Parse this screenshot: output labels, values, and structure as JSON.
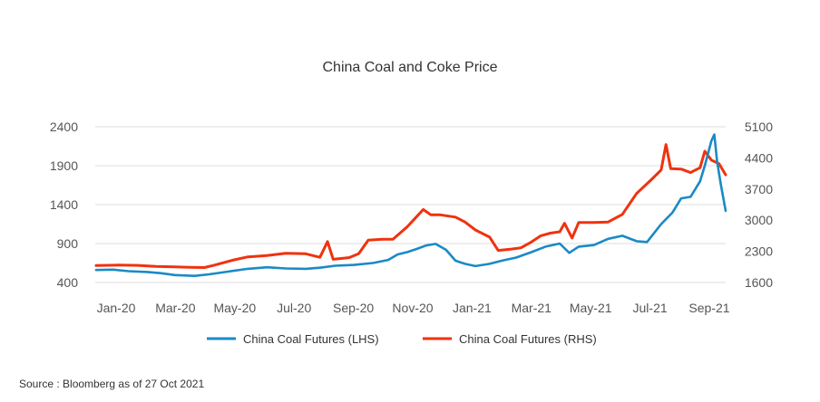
{
  "chart_data": {
    "type": "line",
    "title": "China Coal and Coke Price",
    "x_tick_labels": [
      "Jan-20",
      "Mar-20",
      "May-20",
      "Jul-20",
      "Sep-20",
      "Nov-20",
      "Jan-21",
      "Mar-21",
      "May-21",
      "Jul-21",
      "Sep-21"
    ],
    "x_range": [
      "2020-01-01",
      "2021-10-27"
    ],
    "left_axis": {
      "ylim": [
        400,
        2400
      ],
      "ticks": [
        400,
        900,
        1400,
        1900,
        2400
      ]
    },
    "right_axis": {
      "ylim": [
        1600,
        5100
      ],
      "ticks": [
        1600,
        2300,
        3000,
        3700,
        4400,
        5100
      ]
    },
    "grid": "horizontal",
    "legend": "bottom",
    "series": [
      {
        "name": "China Coal Futures (LHS)",
        "axis": "left",
        "color": "#1a8ac6",
        "points": [
          [
            "2020-01-02",
            560
          ],
          [
            "2020-01-20",
            565
          ],
          [
            "2020-02-05",
            545
          ],
          [
            "2020-02-25",
            535
          ],
          [
            "2020-03-10",
            520
          ],
          [
            "2020-03-25",
            495
          ],
          [
            "2020-04-15",
            485
          ],
          [
            "2020-04-30",
            505
          ],
          [
            "2020-05-20",
            540
          ],
          [
            "2020-06-10",
            575
          ],
          [
            "2020-06-30",
            595
          ],
          [
            "2020-07-20",
            580
          ],
          [
            "2020-08-10",
            575
          ],
          [
            "2020-08-25",
            590
          ],
          [
            "2020-09-10",
            615
          ],
          [
            "2020-09-30",
            625
          ],
          [
            "2020-10-20",
            650
          ],
          [
            "2020-11-05",
            690
          ],
          [
            "2020-11-15",
            760
          ],
          [
            "2020-11-25",
            790
          ],
          [
            "2020-12-05",
            830
          ],
          [
            "2020-12-15",
            875
          ],
          [
            "2020-12-25",
            895
          ],
          [
            "2021-01-05",
            820
          ],
          [
            "2021-01-15",
            680
          ],
          [
            "2021-01-25",
            640
          ],
          [
            "2021-02-05",
            610
          ],
          [
            "2021-02-20",
            640
          ],
          [
            "2021-03-05",
            680
          ],
          [
            "2021-03-20",
            720
          ],
          [
            "2021-04-05",
            790
          ],
          [
            "2021-04-20",
            860
          ],
          [
            "2021-05-05",
            900
          ],
          [
            "2021-05-15",
            780
          ],
          [
            "2021-05-25",
            860
          ],
          [
            "2021-06-10",
            880
          ],
          [
            "2021-06-25",
            960
          ],
          [
            "2021-07-10",
            1000
          ],
          [
            "2021-07-25",
            930
          ],
          [
            "2021-08-05",
            920
          ],
          [
            "2021-08-20",
            1150
          ],
          [
            "2021-09-01",
            1300
          ],
          [
            "2021-09-10",
            1480
          ],
          [
            "2021-09-20",
            1500
          ],
          [
            "2021-09-30",
            1700
          ],
          [
            "2021-10-05",
            1900
          ],
          [
            "2021-10-12",
            2220
          ],
          [
            "2021-10-15",
            2300
          ],
          [
            "2021-10-18",
            1950
          ],
          [
            "2021-10-22",
            1650
          ],
          [
            "2021-10-27",
            1320
          ]
        ]
      },
      {
        "name": "China Coal Futures (RHS)",
        "axis": "right",
        "color": "#f0320f",
        "points": [
          [
            "2020-01-02",
            1980
          ],
          [
            "2020-01-25",
            1990
          ],
          [
            "2020-02-15",
            1985
          ],
          [
            "2020-03-05",
            1960
          ],
          [
            "2020-03-25",
            1950
          ],
          [
            "2020-04-10",
            1940
          ],
          [
            "2020-04-25",
            1935
          ],
          [
            "2020-05-05",
            1985
          ],
          [
            "2020-05-25",
            2100
          ],
          [
            "2020-06-10",
            2175
          ],
          [
            "2020-06-30",
            2205
          ],
          [
            "2020-07-20",
            2255
          ],
          [
            "2020-08-10",
            2245
          ],
          [
            "2020-08-25",
            2165
          ],
          [
            "2020-09-02",
            2520
          ],
          [
            "2020-09-08",
            2120
          ],
          [
            "2020-09-25",
            2160
          ],
          [
            "2020-10-05",
            2250
          ],
          [
            "2020-10-15",
            2550
          ],
          [
            "2020-10-30",
            2570
          ],
          [
            "2020-11-10",
            2570
          ],
          [
            "2020-11-25",
            2850
          ],
          [
            "2020-12-05",
            3080
          ],
          [
            "2020-12-12",
            3240
          ],
          [
            "2020-12-20",
            3120
          ],
          [
            "2020-12-30",
            3120
          ],
          [
            "2021-01-15",
            3070
          ],
          [
            "2021-01-25",
            2960
          ],
          [
            "2021-02-05",
            2780
          ],
          [
            "2021-02-20",
            2620
          ],
          [
            "2021-03-01",
            2320
          ],
          [
            "2021-03-15",
            2350
          ],
          [
            "2021-03-25",
            2380
          ],
          [
            "2021-04-05",
            2510
          ],
          [
            "2021-04-15",
            2650
          ],
          [
            "2021-04-25",
            2710
          ],
          [
            "2021-05-05",
            2740
          ],
          [
            "2021-05-10",
            2930
          ],
          [
            "2021-05-18",
            2600
          ],
          [
            "2021-05-25",
            2950
          ],
          [
            "2021-06-10",
            2950
          ],
          [
            "2021-06-25",
            2960
          ],
          [
            "2021-07-10",
            3130
          ],
          [
            "2021-07-25",
            3600
          ],
          [
            "2021-08-10",
            3920
          ],
          [
            "2021-08-20",
            4130
          ],
          [
            "2021-08-25",
            4700
          ],
          [
            "2021-08-30",
            4160
          ],
          [
            "2021-09-10",
            4150
          ],
          [
            "2021-09-20",
            4070
          ],
          [
            "2021-09-30",
            4180
          ],
          [
            "2021-10-05",
            4550
          ],
          [
            "2021-10-12",
            4350
          ],
          [
            "2021-10-20",
            4270
          ],
          [
            "2021-10-27",
            4020
          ]
        ]
      }
    ]
  },
  "source": "Source : Bloomberg as of 27 Oct 2021"
}
